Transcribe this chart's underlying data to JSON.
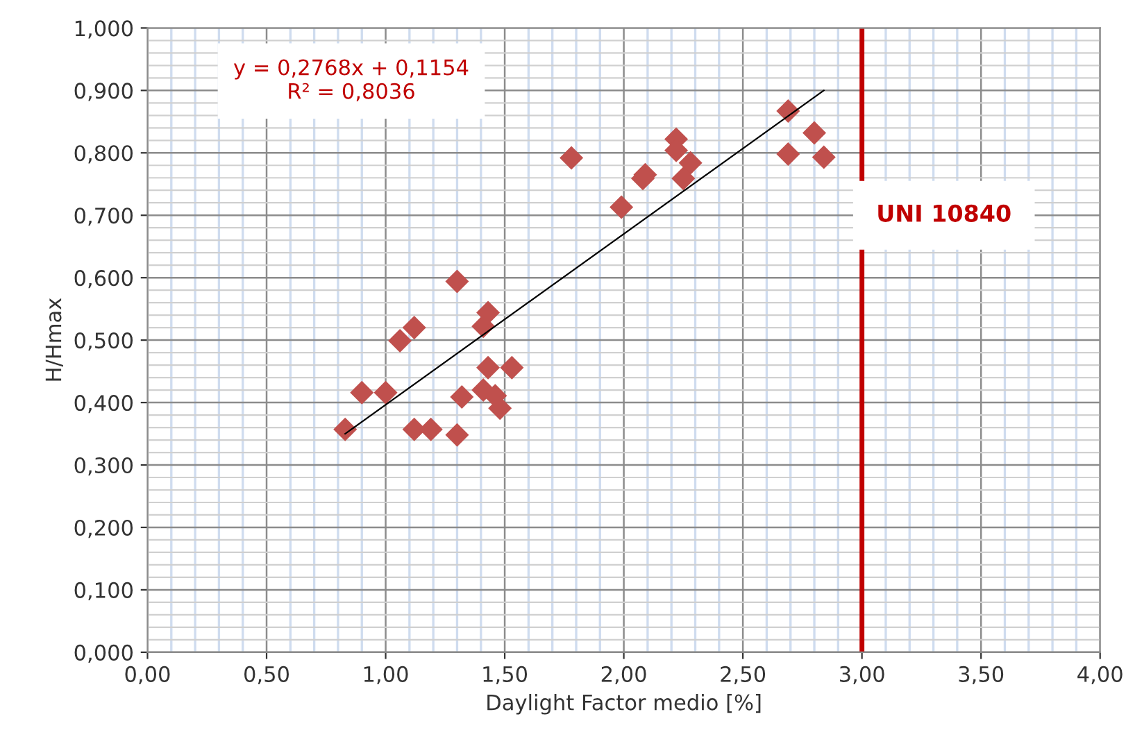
{
  "chart_data": {
    "type": "scatter",
    "xlabel": "Daylight Factor medio [%]",
    "ylabel": "H/Hmax",
    "series": [
      {
        "color": "#c0504d",
        "marker": "diamond",
        "x": [
          0.83,
          0.9,
          1.0,
          1.06,
          1.12,
          1.12,
          1.19,
          1.3,
          1.3,
          1.32,
          1.41,
          1.43,
          1.41,
          1.43,
          1.46,
          1.48,
          1.53,
          1.78,
          1.99,
          2.08,
          2.09,
          2.22,
          2.22,
          2.28,
          2.25,
          2.69,
          2.8,
          2.69,
          2.84
        ],
        "values": [
          0.357,
          0.416,
          0.416,
          0.499,
          0.52,
          0.357,
          0.357,
          0.348,
          0.594,
          0.409,
          0.522,
          0.544,
          0.42,
          0.456,
          0.411,
          0.391,
          0.456,
          0.792,
          0.713,
          0.759,
          0.765,
          0.822,
          0.804,
          0.784,
          0.759,
          0.867,
          0.832,
          0.798,
          0.793
        ]
      },
      {
        "type": "line",
        "color": "#000000",
        "marker": "none",
        "x": [
          0.83,
          2.84
        ],
        "values": [
          0.35,
          0.9
        ]
      }
    ],
    "annotations": [
      "y = 0,2768x + 0,1154\nR² = 0,8036"
    ],
    "ref_lines": [
      {
        "axis": "x",
        "value": 3.0,
        "label": "UNI 10840",
        "color": "#c00000"
      }
    ],
    "xlim": [
      0,
      4
    ],
    "ylim": [
      0,
      1
    ],
    "xticks": [
      {
        "value": 0,
        "label": "0,00"
      },
      {
        "value": 0.5,
        "label": "0,50"
      },
      {
        "value": 1,
        "label": "1,00"
      },
      {
        "value": 1.5,
        "label": "1,50"
      },
      {
        "value": 2,
        "label": "2,00"
      },
      {
        "value": 2.5,
        "label": "2,50"
      },
      {
        "value": 3,
        "label": "3,00"
      },
      {
        "value": 3.5,
        "label": "3,50"
      },
      {
        "value": 4,
        "label": "4,00"
      }
    ],
    "yticks": [
      {
        "value": 0,
        "label": "0,000"
      },
      {
        "value": 0.1,
        "label": "0,100"
      },
      {
        "value": 0.2,
        "label": "0,200"
      },
      {
        "value": 0.3,
        "label": "0,300"
      },
      {
        "value": 0.4,
        "label": "0,400"
      },
      {
        "value": 0.5,
        "label": "0,500"
      },
      {
        "value": 0.6,
        "label": "0,600"
      },
      {
        "value": 0.7,
        "label": "0,700"
      },
      {
        "value": 0.8,
        "label": "0,800"
      },
      {
        "value": 0.9,
        "label": "0,900"
      },
      {
        "value": 1,
        "label": "1,000"
      }
    ],
    "grid": true,
    "legend": false
  }
}
